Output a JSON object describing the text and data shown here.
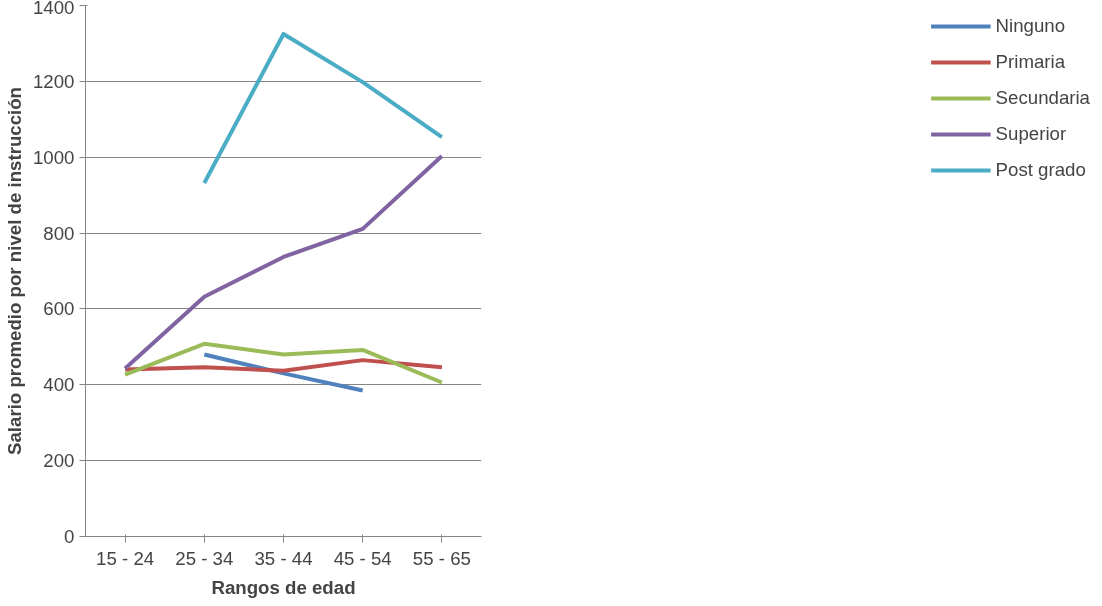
{
  "chart_data": {
    "type": "line",
    "xlabel": "Rangos de edad",
    "ylabel": "Salario promedio por nivel de instrucción",
    "categories": [
      "15 - 24",
      "25 - 34",
      "35 - 44",
      "45 - 54",
      "55 - 65"
    ],
    "series": [
      {
        "name": "Ninguno",
        "color": "#4f81bd",
        "values": [
          null,
          480,
          430,
          385,
          null
        ]
      },
      {
        "name": "Primaria",
        "color": "#c0504d",
        "values": [
          440,
          446,
          437,
          465,
          446
        ]
      },
      {
        "name": "Secundaria",
        "color": "#9bbb59",
        "values": [
          427,
          508,
          480,
          492,
          406
        ]
      },
      {
        "name": "Superior",
        "color": "#8064a2",
        "values": [
          443,
          632,
          737,
          811,
          1003
        ]
      },
      {
        "name": "Post grado",
        "color": "#4bacc6",
        "values": [
          null,
          932,
          1325,
          1198,
          1053
        ]
      }
    ],
    "ylim": [
      0,
      1400
    ],
    "yticks": [
      0,
      200,
      400,
      600,
      800,
      1000,
      1200,
      1400
    ],
    "grid": "y",
    "legend": "right",
    "marker": "none",
    "line_style": "solid"
  }
}
